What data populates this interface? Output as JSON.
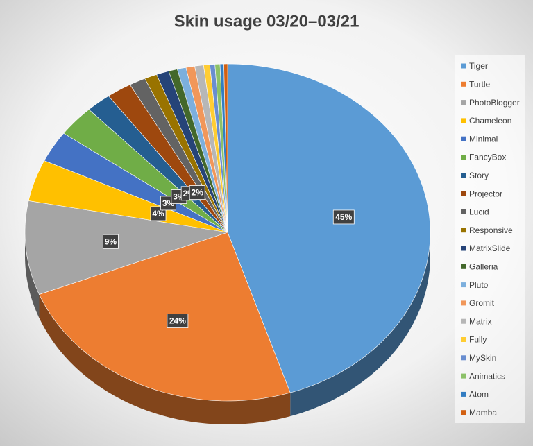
{
  "chart_data": {
    "type": "pie3d",
    "title": "Skin usage 03/20–03/21",
    "categories": [
      "Tiger",
      "Turtle",
      "PhotoBlogger",
      "Chameleon",
      "Minimal",
      "FancyBox",
      "Story",
      "Projector",
      "Lucid",
      "Responsive",
      "MatrixSlide",
      "Galleria",
      "Pluto",
      "Gromit",
      "Matrix",
      "Fully",
      "MySkin",
      "Animatics",
      "Atom",
      "Mamba"
    ],
    "values": [
      45,
      24,
      9,
      4,
      3,
      3,
      2,
      2,
      1.3,
      1,
      1,
      0.7,
      0.7,
      0.7,
      0.7,
      0.5,
      0.4,
      0.4,
      0.3,
      0.3
    ],
    "value_labels": [
      "45%",
      "24%",
      "9%",
      "4%",
      "3%",
      "3%",
      "2%",
      "2%",
      null,
      null,
      null,
      null,
      null,
      null,
      null,
      null,
      null,
      null,
      null,
      null
    ],
    "colors": [
      "#5b9bd5",
      "#ed7d31",
      "#a5a5a5",
      "#ffc000",
      "#4472c4",
      "#70ad47",
      "#255e91",
      "#9e480e",
      "#636363",
      "#997300",
      "#264478",
      "#43682b",
      "#7cafdd",
      "#f1975a",
      "#b7b7b7",
      "#ffcd33",
      "#698ed0",
      "#8cc168",
      "#327dc2",
      "#d26012"
    ],
    "legend": "right"
  }
}
